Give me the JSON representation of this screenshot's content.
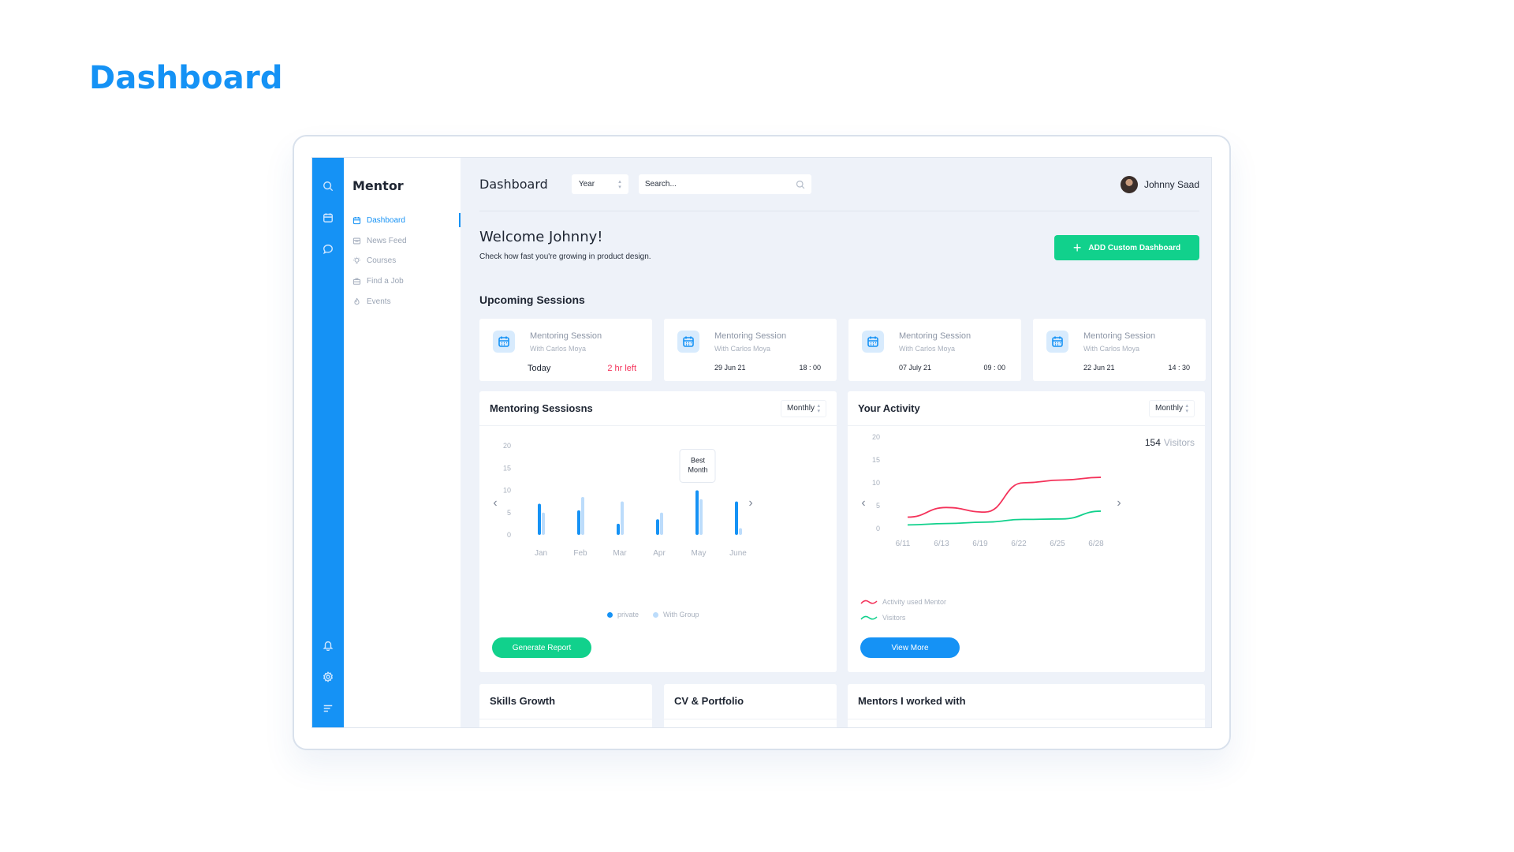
{
  "page_heading": "Dashboard",
  "brand": "Mentor",
  "nav": [
    {
      "label": "Dashboard",
      "icon": "calendar-icon",
      "active": true
    },
    {
      "label": "News Feed",
      "icon": "newspaper-icon",
      "active": false
    },
    {
      "label": "Courses",
      "icon": "lightbulb-icon",
      "active": false
    },
    {
      "label": "Find a Job",
      "icon": "briefcase-icon",
      "active": false
    },
    {
      "label": "Events",
      "icon": "flame-icon",
      "active": false
    }
  ],
  "header": {
    "title": "Dashboard",
    "period": "Year",
    "search_placeholder": "Search...",
    "user_name": "Johnny Saad"
  },
  "welcome": {
    "title": "Welcome Johnny!",
    "subtitle": "Check how fast you're growing in product design."
  },
  "add_button": "ADD Custom Dashboard",
  "upcoming": {
    "title": "Upcoming Sessions",
    "cards": [
      {
        "title": "Mentoring Session",
        "with": "With Carlos Moya",
        "date": "Today",
        "time": "2 hr left"
      },
      {
        "title": "Mentoring Session",
        "with": "With Carlos Moya",
        "date": "29 Jun 21",
        "time": "18 : 00"
      },
      {
        "title": "Mentoring Session",
        "with": "With Carlos Moya",
        "date": "07 July 21",
        "time": "09 : 00"
      },
      {
        "title": "Mentoring Session",
        "with": "With Carlos Moya",
        "date": "22 Jun 21",
        "time": "14 : 30"
      }
    ]
  },
  "mentoring_panel": {
    "title": "Mentoring Sessiosns",
    "period": "Monthly",
    "tooltip": [
      "Best",
      "Month"
    ],
    "button": "Generate Report"
  },
  "activity_panel": {
    "title": "Your Activity",
    "period": "Monthly",
    "visitors_value": "154",
    "visitors_label": "Visitors",
    "button": "View More"
  },
  "bottom_panels": [
    "Skills Growth",
    "CV & Portfolio",
    "Mentors I worked with"
  ],
  "colors": {
    "primary": "#1592f5",
    "accent_green": "#11d18c",
    "danger": "#f4325a",
    "bar_light": "#bcdcfb"
  },
  "chart_data": [
    {
      "type": "bar",
      "categories": [
        "Jan",
        "Feb",
        "Mar",
        "Apr",
        "May",
        "June"
      ],
      "yticks": [
        0,
        5,
        10,
        15,
        20
      ],
      "ylim": [
        0,
        20
      ],
      "series": [
        {
          "name": "private",
          "color": "#1592f5",
          "values": [
            7,
            5.5,
            2.5,
            3.5,
            10,
            7.5
          ]
        },
        {
          "name": "With Group",
          "color": "#bcdcfb",
          "values": [
            5,
            8.5,
            7.5,
            5,
            8,
            1.5
          ]
        }
      ]
    },
    {
      "type": "line",
      "x": [
        "6/11",
        "6/13",
        "6/19",
        "6/22",
        "6/25",
        "6/28"
      ],
      "yticks": [
        0,
        5,
        10,
        15,
        20
      ],
      "ylim": [
        0,
        20
      ],
      "series": [
        {
          "name": "Activity used Mentor",
          "color": "#f4325a",
          "values": [
            2.5,
            4.6,
            3.6,
            10,
            10.6,
            11.2
          ]
        },
        {
          "name": "Visitors",
          "color": "#11d18c",
          "values": [
            0.8,
            1.1,
            1.4,
            2,
            2.1,
            3.8
          ]
        }
      ]
    }
  ]
}
